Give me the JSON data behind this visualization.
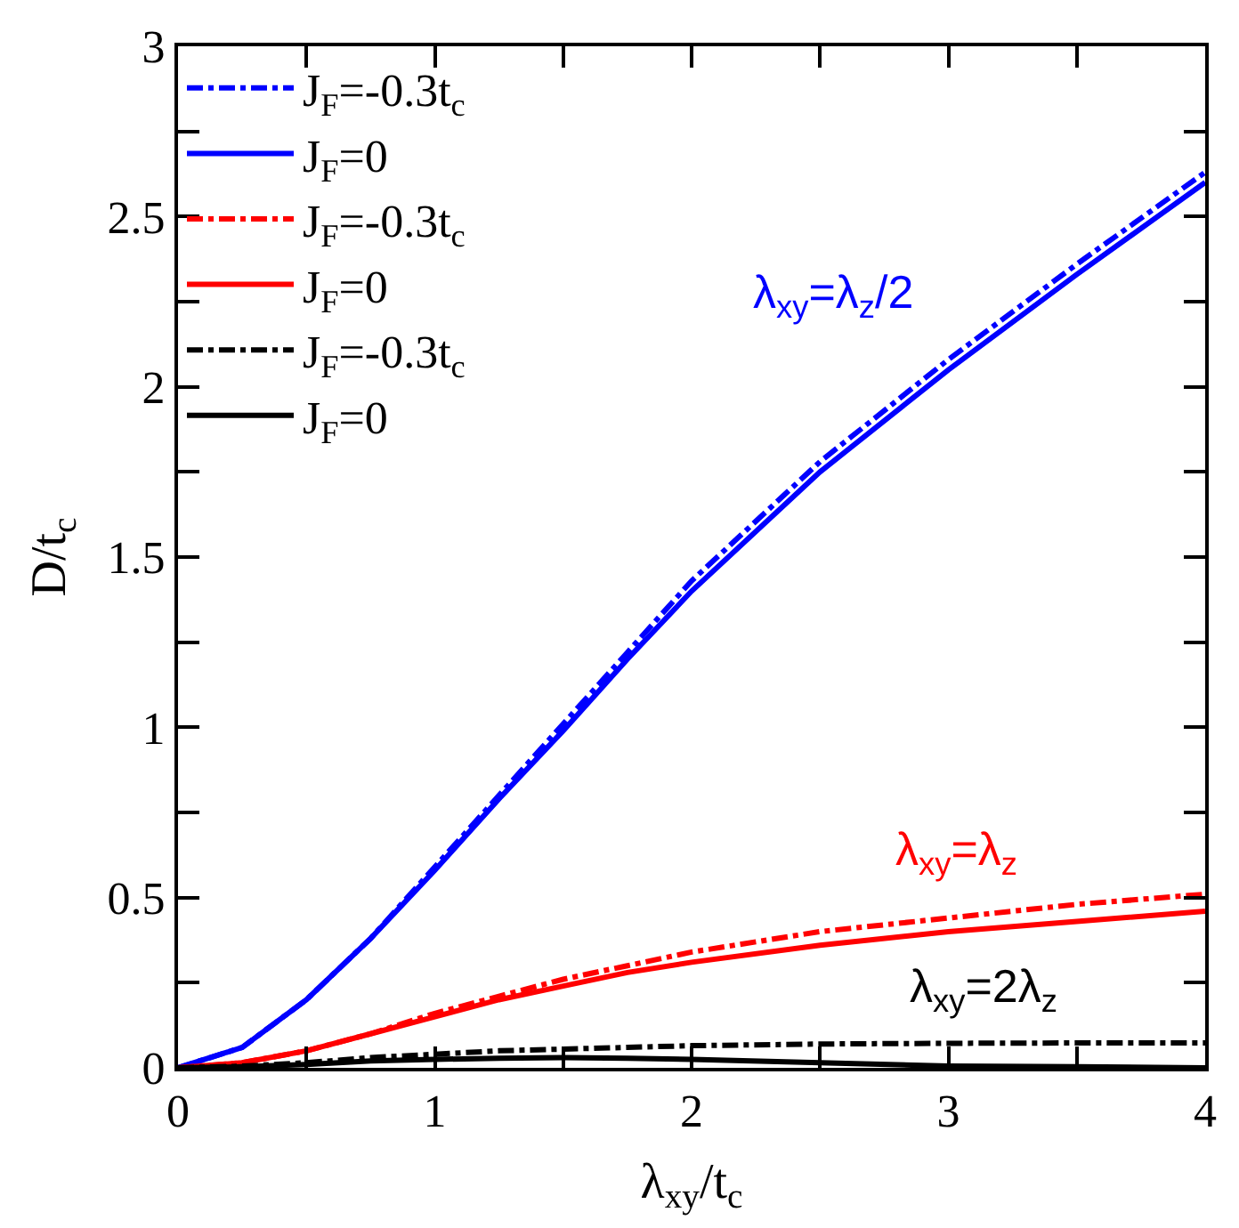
{
  "chart_data": {
    "type": "line",
    "xlabel": "λ$_{xy}$/t$_{c}$",
    "ylabel": "D/t$_{c}$",
    "x": [
      0,
      0.25,
      0.5,
      0.75,
      1,
      1.25,
      1.5,
      1.75,
      2,
      2.5,
      3,
      3.5,
      4
    ],
    "series": [
      {
        "name": "J$_{F}$=-0.3t$_{c}$",
        "color": "#0000ff",
        "line_style": "dashdot",
        "values": [
          0,
          0.06,
          0.2,
          0.38,
          0.59,
          0.8,
          1.01,
          1.22,
          1.43,
          1.78,
          2.08,
          2.36,
          2.63
        ]
      },
      {
        "name": "J$_{F}$=0",
        "color": "#0000ff",
        "line_style": "solid",
        "values": [
          0,
          0.06,
          0.2,
          0.38,
          0.58,
          0.79,
          0.99,
          1.2,
          1.4,
          1.75,
          2.05,
          2.33,
          2.6
        ]
      },
      {
        "name": "J$_{F}$=-0.3t$_{c}$",
        "color": "#ff0000",
        "line_style": "dashdot",
        "values": [
          0,
          0.015,
          0.05,
          0.1,
          0.16,
          0.21,
          0.26,
          0.3,
          0.34,
          0.4,
          0.44,
          0.48,
          0.51
        ]
      },
      {
        "name": "J$_{F}$=0",
        "color": "#ff0000",
        "line_style": "solid",
        "values": [
          0,
          0.015,
          0.05,
          0.1,
          0.15,
          0.2,
          0.24,
          0.28,
          0.31,
          0.36,
          0.4,
          0.43,
          0.46
        ]
      },
      {
        "name": "J$_{F}$=-0.3t$_{c}$",
        "color": "#000000",
        "line_style": "dashdot",
        "values": [
          0,
          0.005,
          0.015,
          0.03,
          0.04,
          0.05,
          0.055,
          0.06,
          0.065,
          0.07,
          0.072,
          0.073,
          0.073
        ]
      },
      {
        "name": "J$_{F}$=0",
        "color": "#000000",
        "line_style": "solid",
        "values": [
          0,
          0.003,
          0.01,
          0.02,
          0.025,
          0.028,
          0.03,
          0.028,
          0.025,
          0.015,
          0.005,
          0.003,
          0
        ]
      }
    ],
    "annotations": [
      "λ$_{xy}$=λ$_{z}$/2",
      "λ$_{xy}$=λ$_{z}$",
      "λ$_{xy}$=2λ$_{z}$"
    ],
    "xlim": [
      0,
      4
    ],
    "ylim": [
      0,
      3
    ],
    "xticks": [
      0,
      {
        "value": 0.5,
        "label": null
      },
      1,
      {
        "value": 1.5,
        "label": null
      },
      2,
      {
        "value": 2.5,
        "label": null
      },
      3,
      {
        "value": 3.5,
        "label": null
      },
      4
    ],
    "yticks": [
      0,
      {
        "value": 0.25,
        "label": null
      },
      0.5,
      {
        "value": 0.75,
        "label": null
      },
      1,
      {
        "value": 1.25,
        "label": null
      },
      1.5,
      {
        "value": 1.75,
        "label": null
      },
      2,
      {
        "value": 2.25,
        "label": null
      },
      2.5,
      {
        "value": 2.75,
        "label": null
      },
      3
    ],
    "legend": "top left",
    "marker": "none"
  }
}
